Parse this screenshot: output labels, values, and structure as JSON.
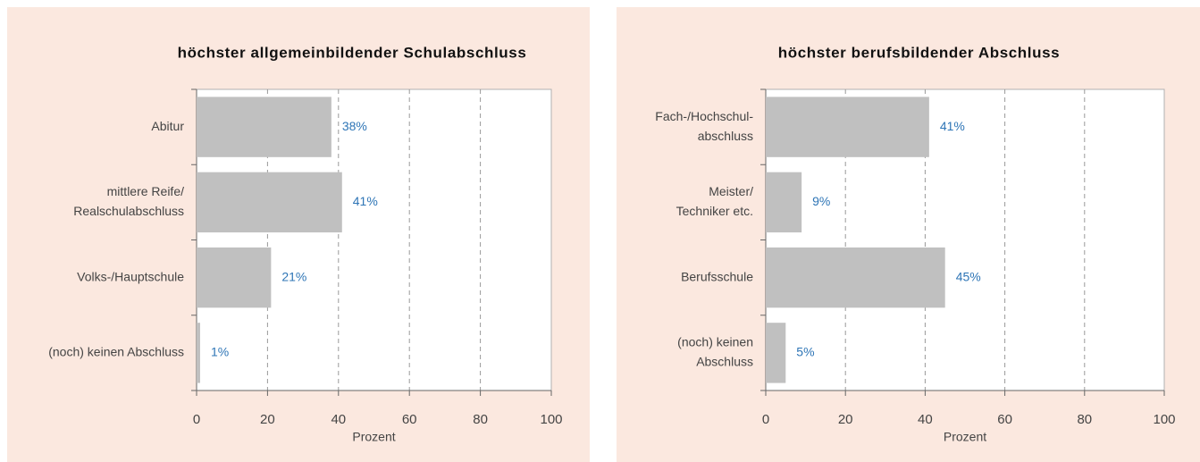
{
  "chart_data": [
    {
      "type": "bar",
      "horizontal": true,
      "title": "höchster allgemeinbildender Schulabschluss",
      "categories": [
        [
          "Abitur"
        ],
        [
          "mittlere Reife/",
          "Realschulabschluss"
        ],
        [
          "Volks-/Hauptschule"
        ],
        [
          "(noch) keinen Abschluss"
        ]
      ],
      "values": [
        38,
        41,
        21,
        1
      ],
      "value_labels": [
        "38%",
        "41%",
        "21%",
        "1%"
      ],
      "color": "#c0c0c0",
      "label_color": "#2e75b6",
      "xlim": [
        0,
        100
      ],
      "xticks": [
        0,
        20,
        40,
        60,
        80,
        100
      ],
      "xlabel": "Prozent",
      "grid": true
    },
    {
      "type": "bar",
      "horizontal": true,
      "title": "höchster berufsbildender Abschluss",
      "categories": [
        [
          "Fach-/Hochschul-",
          "abschluss"
        ],
        [
          "Meister/",
          "Techniker etc."
        ],
        [
          "Berufsschule"
        ],
        [
          "(noch) keinen",
          "Abschluss"
        ]
      ],
      "values": [
        41,
        9,
        45,
        5
      ],
      "value_labels": [
        "41%",
        "9%",
        "45%",
        "5%"
      ],
      "color": "#c0c0c0",
      "label_color": "#2e75b6",
      "xlim": [
        0,
        100
      ],
      "xticks": [
        0,
        20,
        40,
        60,
        80,
        100
      ],
      "xlabel": "Prozent",
      "grid": true
    }
  ]
}
